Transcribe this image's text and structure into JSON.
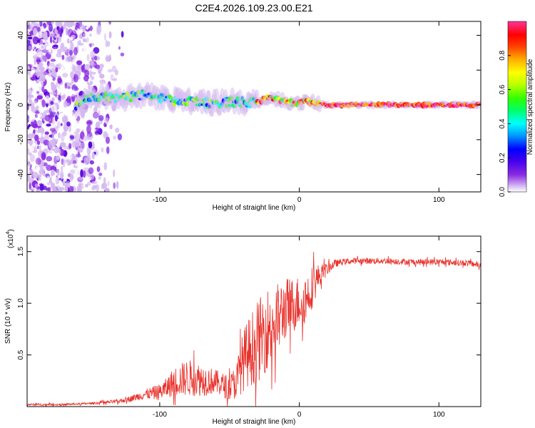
{
  "title": "C2E4.2026.109.23.00.E21",
  "chart_data": [
    {
      "type": "heatmap",
      "title": "C2E4.2026.109.23.00.E21",
      "xlabel": "Height of straight line (km)",
      "ylabel": "Frequency (Hz)",
      "xlim": [
        -195,
        130
      ],
      "ylim": [
        -50,
        48
      ],
      "xticks": [
        -100,
        0,
        100
      ],
      "yticks": [
        -40,
        -20,
        0,
        20,
        40
      ],
      "colorbar": {
        "label": "Normalized spectral amplitude",
        "ticks": [
          0.0,
          0.2,
          0.4,
          0.6,
          0.8
        ],
        "range": [
          0,
          1
        ],
        "colors": [
          "#ffffff",
          "#d4b8f0",
          "#8a2be2",
          "#5500dd",
          "#0000ff",
          "#0088ff",
          "#00ffff",
          "#00ff66",
          "#33ff00",
          "#bbff00",
          "#ffff00",
          "#ffaa00",
          "#ff4400",
          "#ff0000",
          "#ff0077",
          "#ff33bb"
        ]
      },
      "ridge": [
        {
          "x": -155,
          "y": 3
        },
        {
          "x": -140,
          "y": 5
        },
        {
          "x": -125,
          "y": 4
        },
        {
          "x": -110,
          "y": 6
        },
        {
          "x": -95,
          "y": 3
        },
        {
          "x": -80,
          "y": 2
        },
        {
          "x": -65,
          "y": 1
        },
        {
          "x": -50,
          "y": 2
        },
        {
          "x": -35,
          "y": 1
        },
        {
          "x": -20,
          "y": 4
        },
        {
          "x": -5,
          "y": 1
        },
        {
          "x": 5,
          "y": 2
        },
        {
          "x": 20,
          "y": 0
        },
        {
          "x": 60,
          "y": 0
        },
        {
          "x": 100,
          "y": 0
        },
        {
          "x": 130,
          "y": 0
        }
      ]
    },
    {
      "type": "line",
      "xlabel": "Height of straight line (km)",
      "ylabel": "SNR (10 * v/v)",
      "yscale_label": "(x10",
      "yscale_exp": "4",
      "xlim": [
        -195,
        130
      ],
      "ylim": [
        0,
        1.65
      ],
      "xticks": [
        -100,
        0,
        100
      ],
      "yticks": [
        0.5,
        1.0,
        1.5
      ],
      "ytick_labels": [
        "0.5",
        "1.0",
        "1.5"
      ],
      "series": [
        {
          "name": "SNR",
          "color": "#e8302a",
          "x": [
            -195,
            -170,
            -150,
            -130,
            -120,
            -110,
            -100,
            -95,
            -90,
            -80,
            -70,
            -60,
            -50,
            -45,
            -40,
            -35,
            -30,
            -25,
            -20,
            -15,
            -10,
            -5,
            0,
            5,
            10,
            15,
            20,
            25,
            30,
            40,
            60,
            80,
            100,
            120,
            130
          ],
          "y": [
            0.02,
            0.02,
            0.03,
            0.05,
            0.08,
            0.12,
            0.14,
            0.18,
            0.24,
            0.28,
            0.26,
            0.24,
            0.18,
            0.25,
            0.45,
            0.55,
            0.62,
            0.72,
            0.8,
            0.85,
            0.95,
            0.98,
            1.02,
            1.05,
            1.18,
            1.28,
            1.33,
            1.38,
            1.4,
            1.41,
            1.41,
            1.4,
            1.4,
            1.39,
            1.37
          ],
          "spread": [
            0.01,
            0.01,
            0.01,
            0.02,
            0.03,
            0.05,
            0.08,
            0.1,
            0.14,
            0.18,
            0.16,
            0.12,
            0.12,
            0.18,
            0.3,
            0.35,
            0.4,
            0.4,
            0.4,
            0.35,
            0.3,
            0.28,
            0.25,
            0.25,
            0.2,
            0.1,
            0.06,
            0.04,
            0.03,
            0.03,
            0.03,
            0.03,
            0.03,
            0.03,
            0.03
          ]
        }
      ]
    }
  ]
}
